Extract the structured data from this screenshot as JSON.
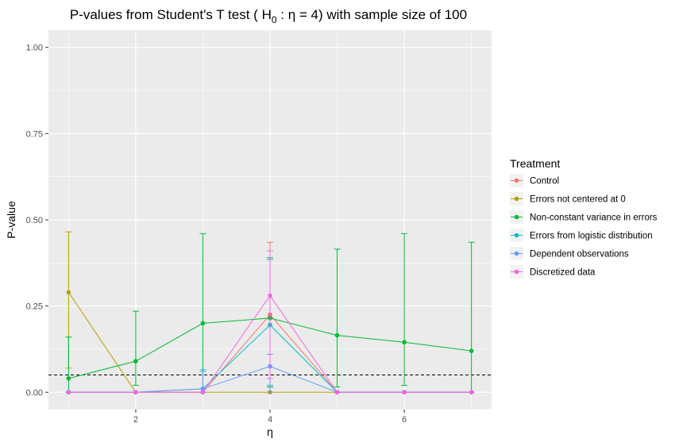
{
  "chart_data": {
    "type": "line",
    "title": {
      "prefix": "P-values from Student's T test ( H",
      "subscript": "0",
      "middle": " :  η  = 4) with sample size of 100"
    },
    "xlabel": "η",
    "ylabel": "P-value",
    "xlim": [
      0.7,
      7.3
    ],
    "ylim": [
      -0.05,
      1.05
    ],
    "x_ticks": [
      2,
      4,
      6
    ],
    "x_tick_labels": [
      "2",
      "4",
      "6"
    ],
    "y_ticks": [
      0,
      0.25,
      0.5,
      0.75,
      1
    ],
    "y_tick_labels": [
      "0.00",
      "0.25",
      "0.50",
      "0.75",
      "1.00"
    ],
    "reference_line": {
      "y": 0.05,
      "style": "dashed"
    },
    "grid": true,
    "legend": {
      "title": "Treatment",
      "placement": "right"
    },
    "series": [
      {
        "name": "Control",
        "color": "#F8766D",
        "points": [
          {
            "x": 1,
            "y": 0.0,
            "lo": 0.0,
            "hi": 0.0
          },
          {
            "x": 2,
            "y": 0.0,
            "lo": 0.0,
            "hi": 0.0
          },
          {
            "x": 3,
            "y": 0.0,
            "lo": 0.0,
            "hi": 0.0
          },
          {
            "x": 4,
            "y": 0.225,
            "lo": 0.015,
            "hi": 0.435
          },
          {
            "x": 5,
            "y": 0.0,
            "lo": 0.0,
            "hi": 0.0
          },
          {
            "x": 6,
            "y": 0.0,
            "lo": 0.0,
            "hi": 0.0
          },
          {
            "x": 7,
            "y": 0.0,
            "lo": 0.0,
            "hi": 0.0
          }
        ]
      },
      {
        "name": "Errors not centered at 0",
        "color": "#B79F00",
        "points": [
          {
            "x": 1,
            "y": 0.29,
            "lo": 0.07,
            "hi": 0.465
          },
          {
            "x": 2,
            "y": 0.0,
            "lo": 0.0,
            "hi": 0.0
          },
          {
            "x": 3,
            "y": 0.0,
            "lo": 0.0,
            "hi": 0.0
          },
          {
            "x": 4,
            "y": 0.0,
            "lo": 0.0,
            "hi": 0.0
          },
          {
            "x": 5,
            "y": 0.0,
            "lo": 0.0,
            "hi": 0.0
          },
          {
            "x": 6,
            "y": 0.0,
            "lo": 0.0,
            "hi": 0.0
          },
          {
            "x": 7,
            "y": 0.0,
            "lo": 0.0,
            "hi": 0.0
          }
        ]
      },
      {
        "name": "Non-constant variance in errors",
        "color": "#00BA38",
        "points": [
          {
            "x": 1,
            "y": 0.04,
            "lo": 0.0,
            "hi": 0.16
          },
          {
            "x": 2,
            "y": 0.09,
            "lo": 0.02,
            "hi": 0.235
          },
          {
            "x": 3,
            "y": 0.2,
            "lo": 0.01,
            "hi": 0.46
          },
          {
            "x": 4,
            "y": 0.215,
            "lo": 0.015,
            "hi": 0.39
          },
          {
            "x": 5,
            "y": 0.165,
            "lo": 0.015,
            "hi": 0.415
          },
          {
            "x": 6,
            "y": 0.145,
            "lo": 0.02,
            "hi": 0.46
          },
          {
            "x": 7,
            "y": 0.12,
            "lo": 0.0,
            "hi": 0.435
          }
        ]
      },
      {
        "name": "Errors from logistic distribution",
        "color": "#00BFC4",
        "points": [
          {
            "x": 1,
            "y": 0.0,
            "lo": 0.0,
            "hi": 0.0
          },
          {
            "x": 2,
            "y": 0.0,
            "lo": 0.0,
            "hi": 0.0
          },
          {
            "x": 3,
            "y": 0.01,
            "lo": 0.0,
            "hi": 0.065
          },
          {
            "x": 4,
            "y": 0.195,
            "lo": 0.02,
            "hi": 0.385
          },
          {
            "x": 5,
            "y": 0.0,
            "lo": 0.0,
            "hi": 0.0
          },
          {
            "x": 6,
            "y": 0.0,
            "lo": 0.0,
            "hi": 0.0
          },
          {
            "x": 7,
            "y": 0.0,
            "lo": 0.0,
            "hi": 0.0
          }
        ]
      },
      {
        "name": "Dependent observations",
        "color": "#619CFF",
        "points": [
          {
            "x": 1,
            "y": 0.0,
            "lo": 0.0,
            "hi": 0.0
          },
          {
            "x": 2,
            "y": 0.0,
            "lo": 0.0,
            "hi": 0.0
          },
          {
            "x": 3,
            "y": 0.01,
            "lo": 0.0,
            "hi": 0.06
          },
          {
            "x": 4,
            "y": 0.075,
            "lo": 0.0,
            "hi": 0.11
          },
          {
            "x": 5,
            "y": 0.0,
            "lo": 0.0,
            "hi": 0.0
          },
          {
            "x": 6,
            "y": 0.0,
            "lo": 0.0,
            "hi": 0.0
          },
          {
            "x": 7,
            "y": 0.0,
            "lo": 0.0,
            "hi": 0.0
          }
        ]
      },
      {
        "name": "Discretized data",
        "color": "#F564E3",
        "points": [
          {
            "x": 1,
            "y": 0.0,
            "lo": 0.0,
            "hi": 0.0
          },
          {
            "x": 2,
            "y": 0.0,
            "lo": 0.0,
            "hi": 0.0
          },
          {
            "x": 3,
            "y": 0.0,
            "lo": 0.0,
            "hi": 0.0
          },
          {
            "x": 4,
            "y": 0.28,
            "lo": 0.04,
            "hi": 0.41
          },
          {
            "x": 5,
            "y": 0.0,
            "lo": 0.0,
            "hi": 0.0
          },
          {
            "x": 6,
            "y": 0.0,
            "lo": 0.0,
            "hi": 0.0
          },
          {
            "x": 7,
            "y": 0.0,
            "lo": 0.0,
            "hi": 0.0
          }
        ]
      }
    ]
  }
}
